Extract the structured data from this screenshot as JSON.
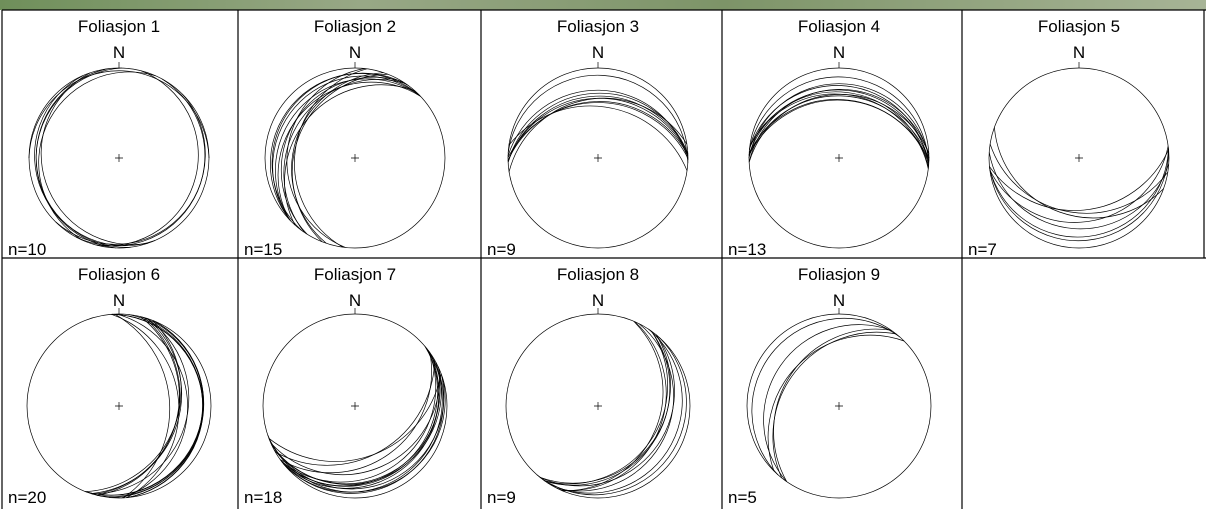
{
  "panels": [
    {
      "title": "Foliasjon 1",
      "north": "N",
      "count": "n=10"
    },
    {
      "title": "Foliasjon 2",
      "north": "N",
      "count": "n=15"
    },
    {
      "title": "Foliasjon 3",
      "north": "N",
      "count": "n=9"
    },
    {
      "title": "Foliasjon 4",
      "north": "N",
      "count": "n=13"
    },
    {
      "title": "Foliasjon 5",
      "north": "N",
      "count": "n=7"
    },
    {
      "title": "Foliasjon 6",
      "north": "N",
      "count": "n=20"
    },
    {
      "title": "Foliasjon 7",
      "north": "N",
      "count": "n=18"
    },
    {
      "title": "Foliasjon 8",
      "north": "N",
      "count": "n=9"
    },
    {
      "title": "Foliasjon 9",
      "north": "N",
      "count": "n=5"
    }
  ]
}
